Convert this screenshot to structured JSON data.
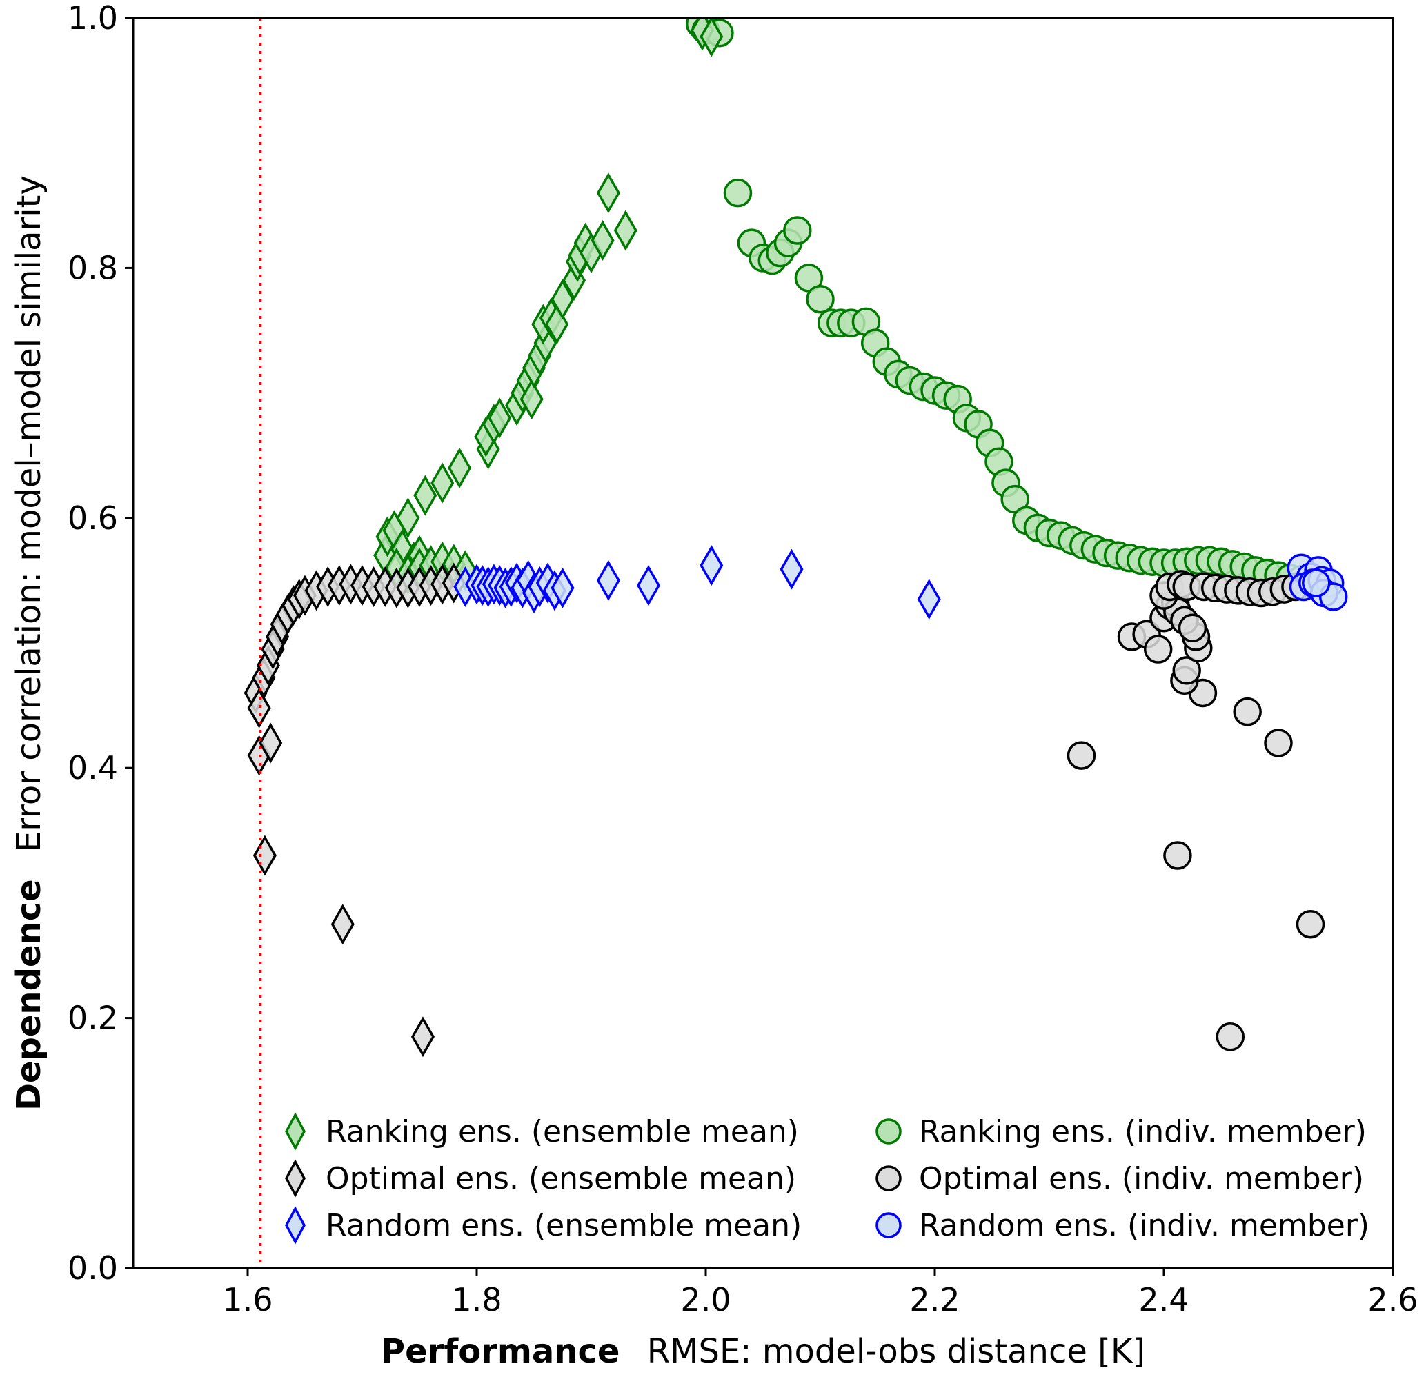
{
  "chart_data": {
    "type": "scatter",
    "title": "",
    "xlabel_bold": "Performance",
    "xlabel": "RMSE: model-obs distance [K]",
    "ylabel_bold": "Dependence",
    "ylabel": "Error correlation: model–model similarity",
    "xlim": [
      1.5,
      2.6
    ],
    "ylim": [
      0.0,
      1.0
    ],
    "xticks": [
      1.6,
      1.8,
      2.0,
      2.2,
      2.4,
      2.6
    ],
    "xtick_labels": [
      "1.6",
      "1.8",
      "2.0",
      "2.2",
      "2.4",
      "2.6"
    ],
    "yticks": [
      0.0,
      0.2,
      0.4,
      0.6,
      0.8,
      1.0
    ],
    "ytick_labels": [
      "0.0",
      "0.2",
      "0.4",
      "0.6",
      "0.8",
      "1.0"
    ],
    "grid": false,
    "legend_position": "bottom",
    "reference_line": {
      "orientation": "vertical",
      "x": 1.611,
      "style": "dotted",
      "color": "#ff0000"
    },
    "series": [
      {
        "name": "Ranking ens. (ensemble mean)",
        "marker": "diamond",
        "edge_color": "#007a00",
        "fill_color": "#b7e3b4",
        "points": [
          [
            1.72,
            0.57
          ],
          [
            1.722,
            0.585
          ],
          [
            1.728,
            0.59
          ],
          [
            1.735,
            0.575
          ],
          [
            1.74,
            0.6
          ],
          [
            1.745,
            0.565
          ],
          [
            1.75,
            0.57
          ],
          [
            1.755,
            0.618
          ],
          [
            1.77,
            0.628
          ],
          [
            1.785,
            0.64
          ],
          [
            1.81,
            0.655
          ],
          [
            1.808,
            0.665
          ],
          [
            1.815,
            0.675
          ],
          [
            1.82,
            0.68
          ],
          [
            1.835,
            0.69
          ],
          [
            1.84,
            0.7
          ],
          [
            1.845,
            0.71
          ],
          [
            1.848,
            0.695
          ],
          [
            1.85,
            0.72
          ],
          [
            1.855,
            0.73
          ],
          [
            1.86,
            0.74
          ],
          [
            1.858,
            0.755
          ],
          [
            1.865,
            0.76
          ],
          [
            1.87,
            0.755
          ],
          [
            1.875,
            0.775
          ],
          [
            1.885,
            0.79
          ],
          [
            1.888,
            0.805
          ],
          [
            1.89,
            0.81
          ],
          [
            1.895,
            0.82
          ],
          [
            1.9,
            0.812
          ],
          [
            1.91,
            0.822
          ],
          [
            1.915,
            0.86
          ],
          [
            1.93,
            0.83
          ],
          [
            1.997,
            0.99
          ],
          [
            2.005,
            0.985
          ],
          [
            1.73,
            0.56
          ],
          [
            1.74,
            0.555
          ],
          [
            1.75,
            0.56
          ],
          [
            1.76,
            0.562
          ],
          [
            1.77,
            0.565
          ],
          [
            1.78,
            0.563
          ],
          [
            1.79,
            0.558
          ]
        ]
      },
      {
        "name": "Optimal ens. (ensemble mean)",
        "marker": "diamond",
        "edge_color": "#000000",
        "fill_color": "#dcdcdc",
        "points": [
          [
            1.607,
            0.46
          ],
          [
            1.61,
            0.448
          ],
          [
            1.61,
            0.41
          ],
          [
            1.62,
            0.42
          ],
          [
            1.615,
            0.33
          ],
          [
            1.683,
            0.275
          ],
          [
            1.753,
            0.185
          ],
          [
            1.614,
            0.472
          ],
          [
            1.618,
            0.482
          ],
          [
            1.622,
            0.495
          ],
          [
            1.626,
            0.505
          ],
          [
            1.63,
            0.515
          ],
          [
            1.635,
            0.523
          ],
          [
            1.64,
            0.53
          ],
          [
            1.645,
            0.535
          ],
          [
            1.65,
            0.538
          ],
          [
            1.66,
            0.542
          ],
          [
            1.67,
            0.545
          ],
          [
            1.68,
            0.546
          ],
          [
            1.69,
            0.547
          ],
          [
            1.7,
            0.546
          ],
          [
            1.71,
            0.545
          ],
          [
            1.72,
            0.545
          ],
          [
            1.73,
            0.544
          ],
          [
            1.74,
            0.544
          ],
          [
            1.75,
            0.545
          ],
          [
            1.76,
            0.546
          ],
          [
            1.77,
            0.547
          ],
          [
            1.78,
            0.548
          ]
        ]
      },
      {
        "name": "Random ens. (ensemble mean)",
        "marker": "diamond",
        "edge_color": "#0000ff",
        "fill_color": "#cfe0f3",
        "points": [
          [
            1.79,
            0.545
          ],
          [
            1.8,
            0.547
          ],
          [
            1.805,
            0.546
          ],
          [
            1.81,
            0.545
          ],
          [
            1.815,
            0.547
          ],
          [
            1.82,
            0.546
          ],
          [
            1.825,
            0.544
          ],
          [
            1.83,
            0.545
          ],
          [
            1.835,
            0.548
          ],
          [
            1.84,
            0.544
          ],
          [
            1.845,
            0.55
          ],
          [
            1.85,
            0.54
          ],
          [
            1.855,
            0.545
          ],
          [
            1.862,
            0.548
          ],
          [
            1.868,
            0.542
          ],
          [
            1.875,
            0.544
          ],
          [
            1.915,
            0.55
          ],
          [
            1.95,
            0.546
          ],
          [
            2.005,
            0.562
          ],
          [
            2.075,
            0.559
          ],
          [
            2.195,
            0.535
          ]
        ]
      },
      {
        "name": "Ranking ens. (indiv. member)",
        "marker": "circle",
        "edge_color": "#007a00",
        "fill_color": "#b7e3b4",
        "points": [
          [
            1.995,
            0.995
          ],
          [
            2.0,
            0.99
          ],
          [
            2.012,
            0.988
          ],
          [
            2.028,
            0.86
          ],
          [
            2.04,
            0.82
          ],
          [
            2.05,
            0.808
          ],
          [
            2.058,
            0.806
          ],
          [
            2.065,
            0.812
          ],
          [
            2.072,
            0.82
          ],
          [
            2.08,
            0.83
          ],
          [
            2.09,
            0.792
          ],
          [
            2.1,
            0.775
          ],
          [
            2.11,
            0.756
          ],
          [
            2.118,
            0.756
          ],
          [
            2.127,
            0.756
          ],
          [
            2.14,
            0.757
          ],
          [
            2.148,
            0.74
          ],
          [
            2.158,
            0.725
          ],
          [
            2.168,
            0.715
          ],
          [
            2.178,
            0.71
          ],
          [
            2.19,
            0.705
          ],
          [
            2.2,
            0.702
          ],
          [
            2.21,
            0.698
          ],
          [
            2.22,
            0.695
          ],
          [
            2.228,
            0.68
          ],
          [
            2.238,
            0.675
          ],
          [
            2.248,
            0.66
          ],
          [
            2.256,
            0.645
          ],
          [
            2.262,
            0.628
          ],
          [
            2.27,
            0.615
          ],
          [
            2.28,
            0.598
          ],
          [
            2.29,
            0.592
          ],
          [
            2.3,
            0.588
          ],
          [
            2.31,
            0.586
          ],
          [
            2.32,
            0.582
          ],
          [
            2.33,
            0.578
          ],
          [
            2.34,
            0.575
          ],
          [
            2.35,
            0.572
          ],
          [
            2.36,
            0.57
          ],
          [
            2.37,
            0.568
          ],
          [
            2.38,
            0.566
          ],
          [
            2.39,
            0.565
          ],
          [
            2.4,
            0.564
          ],
          [
            2.41,
            0.564
          ],
          [
            2.42,
            0.565
          ],
          [
            2.43,
            0.566
          ],
          [
            2.44,
            0.566
          ],
          [
            2.45,
            0.565
          ],
          [
            2.46,
            0.563
          ],
          [
            2.47,
            0.561
          ],
          [
            2.48,
            0.558
          ],
          [
            2.49,
            0.556
          ],
          [
            2.5,
            0.554
          ],
          [
            2.51,
            0.552
          ],
          [
            2.52,
            0.551
          ]
        ]
      },
      {
        "name": "Optimal ens. (indiv. member)",
        "marker": "circle",
        "edge_color": "#000000",
        "fill_color": "#dcdcdc",
        "points": [
          [
            2.328,
            0.41
          ],
          [
            2.412,
            0.33
          ],
          [
            2.458,
            0.185
          ],
          [
            2.528,
            0.275
          ],
          [
            2.473,
            0.445
          ],
          [
            2.5,
            0.42
          ],
          [
            2.434,
            0.46
          ],
          [
            2.418,
            0.47
          ],
          [
            2.42,
            0.478
          ],
          [
            2.43,
            0.496
          ],
          [
            2.428,
            0.505
          ],
          [
            2.372,
            0.505
          ],
          [
            2.385,
            0.507
          ],
          [
            2.395,
            0.495
          ],
          [
            2.4,
            0.52
          ],
          [
            2.405,
            0.53
          ],
          [
            2.41,
            0.532
          ],
          [
            2.412,
            0.525
          ],
          [
            2.418,
            0.518
          ],
          [
            2.425,
            0.512
          ],
          [
            2.4,
            0.538
          ],
          [
            2.405,
            0.545
          ],
          [
            2.415,
            0.547
          ],
          [
            2.42,
            0.545
          ],
          [
            2.435,
            0.545
          ],
          [
            2.445,
            0.544
          ],
          [
            2.455,
            0.543
          ],
          [
            2.465,
            0.542
          ],
          [
            2.475,
            0.541
          ],
          [
            2.485,
            0.54
          ],
          [
            2.495,
            0.541
          ],
          [
            2.505,
            0.543
          ],
          [
            2.515,
            0.545
          ]
        ]
      },
      {
        "name": "Random ens. (indiv. member)",
        "marker": "circle",
        "edge_color": "#0000ff",
        "fill_color": "#cfe0f3",
        "points": [
          [
            2.52,
            0.56
          ],
          [
            2.528,
            0.553
          ],
          [
            2.535,
            0.558
          ],
          [
            2.522,
            0.545
          ],
          [
            2.53,
            0.548
          ],
          [
            2.538,
            0.55
          ],
          [
            2.545,
            0.548
          ],
          [
            2.54,
            0.54
          ],
          [
            2.548,
            0.537
          ],
          [
            2.533,
            0.548
          ]
        ]
      }
    ]
  }
}
